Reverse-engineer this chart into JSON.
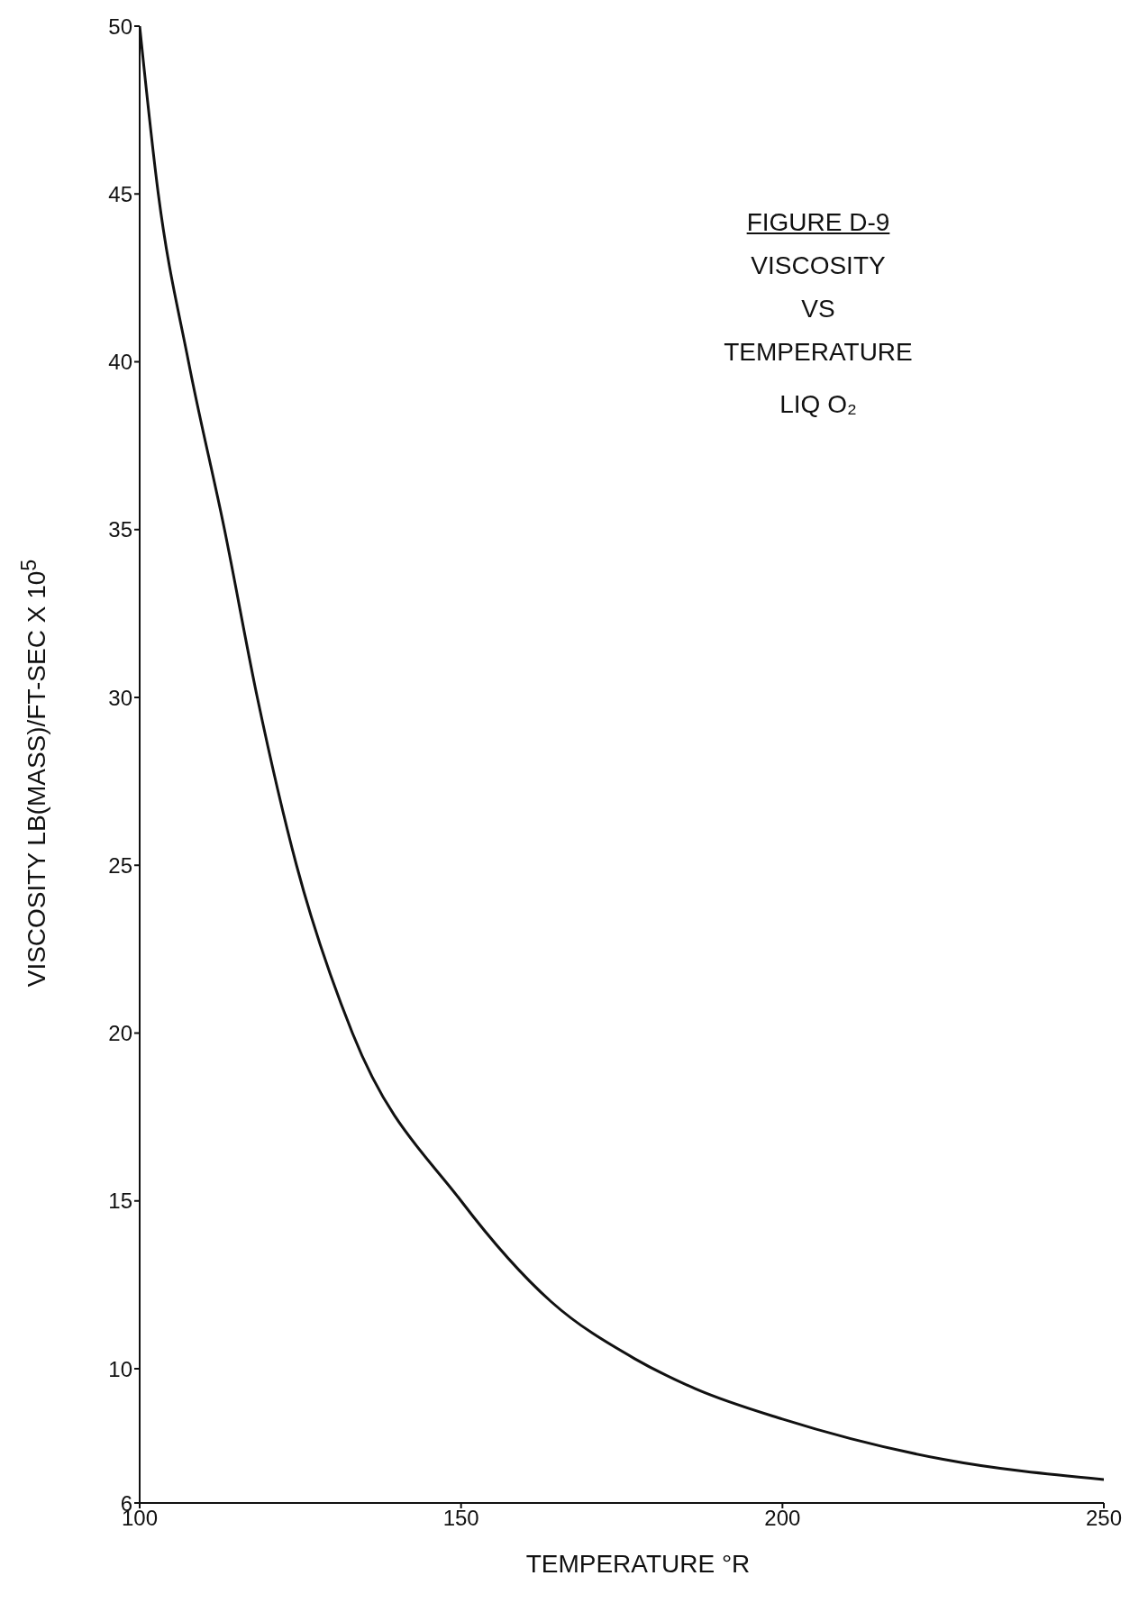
{
  "chart_data": {
    "type": "line",
    "title": "FIGURE D-9",
    "subtitle": "VISCOSITY VS TEMPERATURE",
    "annotations": [
      "LIQ O₂"
    ],
    "xlabel": "TEMPERATURE °R",
    "ylabel": "VISCOSITY LB(MASS)/FT-SEC X 10$^{5}$",
    "x": [
      100,
      102.9,
      107.6,
      113.2,
      118.3,
      124.4,
      133.1,
      150,
      164,
      177,
      186.5,
      200,
      225,
      250
    ],
    "series": [
      {
        "color": "#111111",
        "values": [
          50,
          45,
          40,
          35,
          30,
          25,
          20,
          15,
          12,
          10.3,
          9.4,
          8.5,
          7.3,
          6.7
        ]
      }
    ],
    "xlim": [
      100,
      250
    ],
    "xticks": [
      100,
      150,
      200,
      250
    ],
    "ylim": [
      6,
      50
    ],
    "yticks": [
      6,
      10,
      15,
      20,
      25,
      30,
      35,
      40,
      45,
      50
    ],
    "grid": false,
    "marker": "none",
    "line_style": "solid"
  }
}
